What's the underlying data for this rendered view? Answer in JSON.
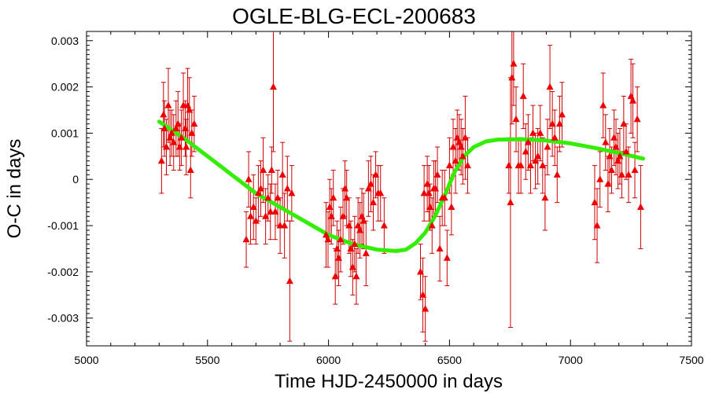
{
  "chart_data": {
    "type": "scatter",
    "title": "OGLE-BLG-ECL-200683",
    "xlabel": "Time HJD-2450000 in days",
    "ylabel": "O-C in days",
    "xlim": [
      5000,
      7500
    ],
    "ylim": [
      -0.0036,
      0.0032
    ],
    "x_ticks": [
      5000,
      5500,
      6000,
      6500,
      7000,
      7500
    ],
    "x_tick_labels": [
      "5000",
      "5500",
      "6000",
      "6500",
      "7000",
      "7500"
    ],
    "y_ticks": [
      0.003,
      0.002,
      0.001,
      0,
      -0.001,
      -0.002,
      -0.003
    ],
    "y_tick_labels": [
      "0.003",
      "0.002",
      "0.001",
      "0",
      "-0.001",
      "-0.002",
      "-0.003"
    ],
    "grid": false,
    "legend": "none",
    "colors": {
      "points": "#ee0000",
      "errorbars": "#cc0000",
      "fit": "#33ee00"
    },
    "series": [
      {
        "kind": "points-with-errorbars",
        "points": [
          [
            5310,
            0.0004,
            0.0007
          ],
          [
            5318,
            0.0014,
            0.0007
          ],
          [
            5322,
            0.0011,
            0.0006
          ],
          [
            5330,
            0.0007,
            0.0006
          ],
          [
            5338,
            0.0016,
            0.0008
          ],
          [
            5345,
            0.0009,
            0.0006
          ],
          [
            5352,
            0.001,
            0.0005
          ],
          [
            5360,
            0.0008,
            0.0006
          ],
          [
            5370,
            0.0011,
            0.0006
          ],
          [
            5378,
            0.0012,
            0.0007
          ],
          [
            5385,
            0.0007,
            0.0005
          ],
          [
            5392,
            0.0009,
            0.0006
          ],
          [
            5400,
            0.0016,
            0.0007
          ],
          [
            5408,
            0.0011,
            0.0006
          ],
          [
            5412,
            0.0007,
            0.0006
          ],
          [
            5418,
            0.0016,
            0.0008
          ],
          [
            5425,
            0.0015,
            0.0007
          ],
          [
            5430,
            0.0002,
            0.0006
          ],
          [
            5435,
            0.001,
            0.0005
          ],
          [
            5445,
            0.0012,
            0.0006
          ],
          [
            5660,
            -0.0013,
            0.0006
          ],
          [
            5670,
            0.0,
            0.0006
          ],
          [
            5678,
            -0.0008,
            0.0006
          ],
          [
            5690,
            -0.0006,
            0.0007
          ],
          [
            5700,
            -0.0009,
            0.0005
          ],
          [
            5710,
            -0.0003,
            0.0006
          ],
          [
            5720,
            -0.0002,
            0.0006
          ],
          [
            5730,
            0.0002,
            0.0007
          ],
          [
            5740,
            -0.0008,
            0.0006
          ],
          [
            5750,
            -0.0004,
            0.0005
          ],
          [
            5760,
            -0.0007,
            0.0006
          ],
          [
            5765,
            0.0002,
            0.0005
          ],
          [
            5772,
            0.002,
            0.0014
          ],
          [
            5780,
            -0.0007,
            0.0006
          ],
          [
            5790,
            -0.0004,
            0.0006
          ],
          [
            5800,
            -0.001,
            0.0006
          ],
          [
            5810,
            0.0001,
            0.0007
          ],
          [
            5818,
            -0.001,
            0.0007
          ],
          [
            5830,
            -0.0002,
            0.0007
          ],
          [
            5840,
            -0.0022,
            0.0013
          ],
          [
            5848,
            -0.0003,
            0.0006
          ],
          [
            5990,
            -0.0012,
            0.0007
          ],
          [
            5998,
            -0.0013,
            0.0006
          ],
          [
            6005,
            -0.0006,
            0.0006
          ],
          [
            6012,
            -0.0008,
            0.0006
          ],
          [
            6020,
            -0.0004,
            0.0006
          ],
          [
            6028,
            -0.0021,
            0.0006
          ],
          [
            6035,
            -0.0015,
            0.0006
          ],
          [
            6042,
            -0.0017,
            0.0006
          ],
          [
            6050,
            -0.0013,
            0.0007
          ],
          [
            6060,
            -0.0008,
            0.0006
          ],
          [
            6068,
            -0.0002,
            0.0006
          ],
          [
            6075,
            -0.0004,
            0.0006
          ],
          [
            6085,
            -0.001,
            0.0006
          ],
          [
            6092,
            -0.0015,
            0.0006
          ],
          [
            6100,
            -0.0019,
            0.0006
          ],
          [
            6108,
            -0.0014,
            0.0006
          ],
          [
            6115,
            -0.0021,
            0.0006
          ],
          [
            6122,
            -0.001,
            0.0006
          ],
          [
            6130,
            -0.0011,
            0.0006
          ],
          [
            6138,
            -0.0008,
            0.0006
          ],
          [
            6145,
            -0.0009,
            0.0006
          ],
          [
            6155,
            -0.0016,
            0.0007
          ],
          [
            6165,
            -0.0002,
            0.0006
          ],
          [
            6175,
            -0.0001,
            0.0006
          ],
          [
            6185,
            -0.0005,
            0.0006
          ],
          [
            6195,
            0.0001,
            0.0005
          ],
          [
            6205,
            -0.0003,
            0.0006
          ],
          [
            6215,
            -0.0003,
            0.0006
          ],
          [
            6230,
            -0.001,
            0.0006
          ],
          [
            6380,
            -0.002,
            0.0006
          ],
          [
            6390,
            -0.0025,
            0.0008
          ],
          [
            6395,
            -0.0003,
            0.0006
          ],
          [
            6400,
            -0.0028,
            0.0007
          ],
          [
            6408,
            -0.0001,
            0.0006
          ],
          [
            6415,
            -0.0003,
            0.0006
          ],
          [
            6420,
            -0.0006,
            0.0005
          ],
          [
            6428,
            -0.001,
            0.0006
          ],
          [
            6435,
            -0.0002,
            0.0006
          ],
          [
            6442,
            -0.0002,
            0.0006
          ],
          [
            6450,
            0.0001,
            0.0006
          ],
          [
            6460,
            -0.0015,
            0.0007
          ],
          [
            6470,
            -0.0004,
            0.0006
          ],
          [
            6480,
            -0.0004,
            0.0006
          ],
          [
            6490,
            -0.0017,
            0.0006
          ],
          [
            6500,
            0.0003,
            0.0006
          ],
          [
            6508,
            -0.0006,
            0.0006
          ],
          [
            6515,
            0.0007,
            0.0006
          ],
          [
            6525,
            0.0004,
            0.0007
          ],
          [
            6532,
            0.0009,
            0.0006
          ],
          [
            6540,
            0.0008,
            0.0006
          ],
          [
            6548,
            0.0007,
            0.0006
          ],
          [
            6555,
            0.0005,
            0.0006
          ],
          [
            6565,
            0.0009,
            0.0009
          ],
          [
            6575,
            0.0003,
            0.0006
          ],
          [
            6745,
            0.0003,
            0.0006
          ],
          [
            6752,
            -0.0005,
            0.0027
          ],
          [
            6758,
            0.0022,
            0.001
          ],
          [
            6765,
            0.0025,
            0.0009
          ],
          [
            6775,
            0.0013,
            0.0007
          ],
          [
            6785,
            0.0003,
            0.0006
          ],
          [
            6795,
            0.0003,
            0.0006
          ],
          [
            6805,
            0.0018,
            0.0007
          ],
          [
            6815,
            0.0006,
            0.0006
          ],
          [
            6825,
            0.0008,
            0.0006
          ],
          [
            6835,
            0.0003,
            0.0006
          ],
          [
            6845,
            0.001,
            0.0006
          ],
          [
            6855,
            0.0004,
            0.0006
          ],
          [
            6865,
            0.0005,
            0.0006
          ],
          [
            6875,
            0.001,
            0.0006
          ],
          [
            6885,
            0.0003,
            0.0006
          ],
          [
            6895,
            -0.0004,
            0.0007
          ],
          [
            6905,
            0.0007,
            0.0006
          ],
          [
            6915,
            0.002,
            0.0009
          ],
          [
            6925,
            0.0012,
            0.0007
          ],
          [
            6935,
            0.0009,
            0.0006
          ],
          [
            6945,
            0.0001,
            0.0006
          ],
          [
            6955,
            0.0012,
            0.0006
          ],
          [
            6965,
            0.0014,
            0.0007
          ],
          [
            7100,
            -0.0005,
            0.0008
          ],
          [
            7110,
            -0.001,
            0.0008
          ],
          [
            7122,
            0.0,
            0.0006
          ],
          [
            7135,
            0.0016,
            0.0007
          ],
          [
            7145,
            0.0008,
            0.0006
          ],
          [
            7155,
            -0.0001,
            0.0006
          ],
          [
            7162,
            0.0005,
            0.0006
          ],
          [
            7170,
            0.0002,
            0.0005
          ],
          [
            7180,
            0.0009,
            0.0006
          ],
          [
            7188,
            0.0007,
            0.0006
          ],
          [
            7196,
            0.0004,
            0.0006
          ],
          [
            7204,
            0.0005,
            0.0006
          ],
          [
            7212,
            0.0001,
            0.0005
          ],
          [
            7220,
            0.0012,
            0.0006
          ],
          [
            7230,
            0.0006,
            0.0006
          ],
          [
            7240,
            0.0001,
            0.0006
          ],
          [
            7250,
            0.0018,
            0.0008
          ],
          [
            7258,
            0.0017,
            0.0008
          ],
          [
            7266,
            0.0002,
            0.0006
          ],
          [
            7276,
            0.0013,
            0.0007
          ],
          [
            7290,
            -0.0006,
            0.0009
          ]
        ]
      },
      {
        "kind": "fit-curve",
        "x": [
          5300,
          5400,
          5500,
          5600,
          5700,
          5800,
          5900,
          6000,
          6100,
          6200,
          6280,
          6320,
          6360,
          6400,
          6440,
          6480,
          6520,
          6560,
          6600,
          6650,
          6700,
          6800,
          6900,
          7000,
          7100,
          7200,
          7300
        ],
        "y": [
          0.00125,
          0.0009,
          0.0005,
          0.0001,
          -0.0003,
          -0.0006,
          -0.0009,
          -0.0012,
          -0.0014,
          -0.00152,
          -0.00155,
          -0.00152,
          -0.00138,
          -0.00115,
          -0.0008,
          -0.00035,
          0.00015,
          0.0005,
          0.0007,
          0.00082,
          0.00086,
          0.00087,
          0.00084,
          0.00078,
          0.00068,
          0.00057,
          0.00045
        ]
      }
    ]
  }
}
